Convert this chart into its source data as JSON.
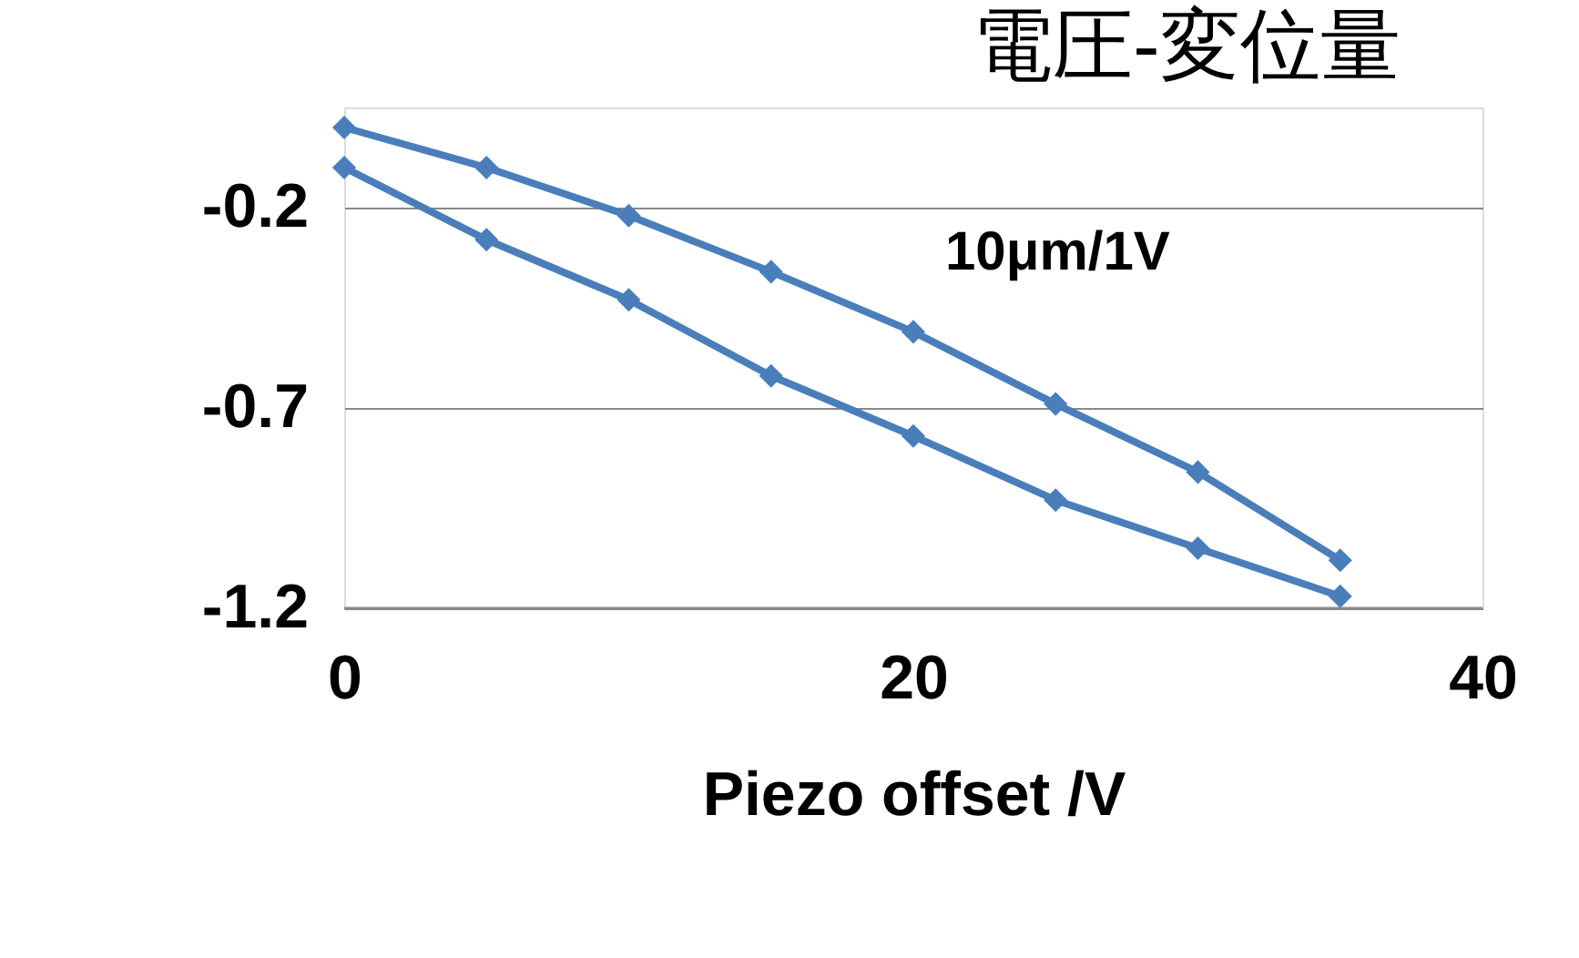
{
  "chart_data": {
    "type": "line",
    "title": "電圧-変位量",
    "xlabel": "Piezo offset /V",
    "annotations": [
      "10μm/1V"
    ],
    "series": [
      {
        "color": "#4a7ebb",
        "x": [
          0,
          5,
          10,
          15,
          20,
          25,
          30,
          35
        ],
        "values": [
          0.0,
          -0.1,
          -0.22,
          -0.36,
          -0.51,
          -0.69,
          -0.86,
          -1.08
        ]
      },
      {
        "color": "#4a7ebb",
        "x": [
          0,
          5,
          10,
          15,
          20,
          25,
          30,
          35
        ],
        "values": [
          -0.1,
          -0.28,
          -0.43,
          -0.62,
          -0.77,
          -0.93,
          -1.05,
          -1.17
        ]
      }
    ],
    "xlim": [
      0,
      40
    ],
    "xticks": [
      0,
      20,
      40
    ],
    "ylim": [
      -1.2,
      0.05
    ],
    "yticks": [
      -1.2,
      -0.7,
      -0.2
    ],
    "grid": "y",
    "marker": "diamond",
    "line_style": "solid"
  }
}
